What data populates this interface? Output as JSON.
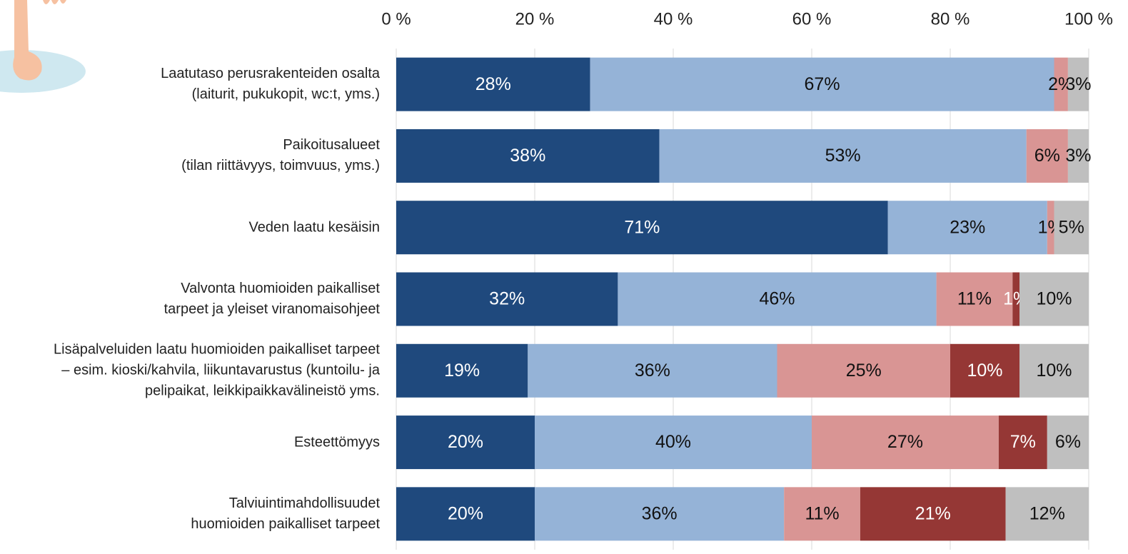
{
  "chart_data": {
    "type": "stacked-bar-horizontal",
    "categories": [
      "Laatutaso perusrakenteiden osalta\n(laiturit, pukukopit, wc:t, yms.)",
      "Paikoitusalueet\n(tilan riittävyys, toimvuus, yms.)",
      "Veden laatu kesäisin",
      "Valvonta huomioiden paikalliset\ntarpeet ja yleiset viranomaisohjeet",
      "Lisäpalveluiden laatu huomioiden paikalliset tarpeet\n– esim. kioski/kahvila, liikuntavarustus (kuntoilu- ja\npelipaikat, leikkipaikkavälineistö yms.",
      "Esteettömyys",
      "Talviuintimahdollisuudet\nhuomioiden paikalliset tarpeet"
    ],
    "series": [
      {
        "color": "#1f497d",
        "values": [
          28,
          38,
          71,
          32,
          19,
          20,
          20
        ],
        "value_labels": [
          "28%",
          "38%",
          "71%",
          "32%",
          "19%",
          "20%",
          "20%"
        ]
      },
      {
        "color": "#95b3d7",
        "values": [
          67,
          53,
          23,
          46,
          36,
          40,
          36
        ],
        "value_labels": [
          "67%",
          "53%",
          "23%",
          "46%",
          "36%",
          "40%",
          "36%"
        ]
      },
      {
        "color": "#d99594",
        "values": [
          2,
          6,
          1,
          11,
          25,
          27,
          11
        ],
        "value_labels": [
          "2%",
          "6%",
          "1%",
          "11%",
          "25%",
          "27%",
          "11%"
        ]
      },
      {
        "color": "#953735",
        "values": [
          null,
          null,
          null,
          1,
          10,
          7,
          21
        ],
        "value_labels": [
          null,
          null,
          null,
          "1%",
          "10%",
          "7%",
          "21%"
        ]
      },
      {
        "color": "#bfbfbf",
        "values": [
          3,
          3,
          5,
          10,
          10,
          6,
          12
        ],
        "value_labels": [
          "3%",
          "3%",
          "5%",
          "10%",
          "10%",
          "6%",
          "12%"
        ]
      }
    ],
    "xlim": [
      0,
      100
    ],
    "xticks": [
      {
        "value": 0,
        "label": "0 %"
      },
      {
        "value": 20,
        "label": "20 %"
      },
      {
        "value": 40,
        "label": "40 %"
      },
      {
        "value": 60,
        "label": "60 %"
      },
      {
        "value": 80,
        "label": "80 %"
      },
      {
        "value": 100,
        "label": "100 %"
      }
    ],
    "grid": true
  }
}
